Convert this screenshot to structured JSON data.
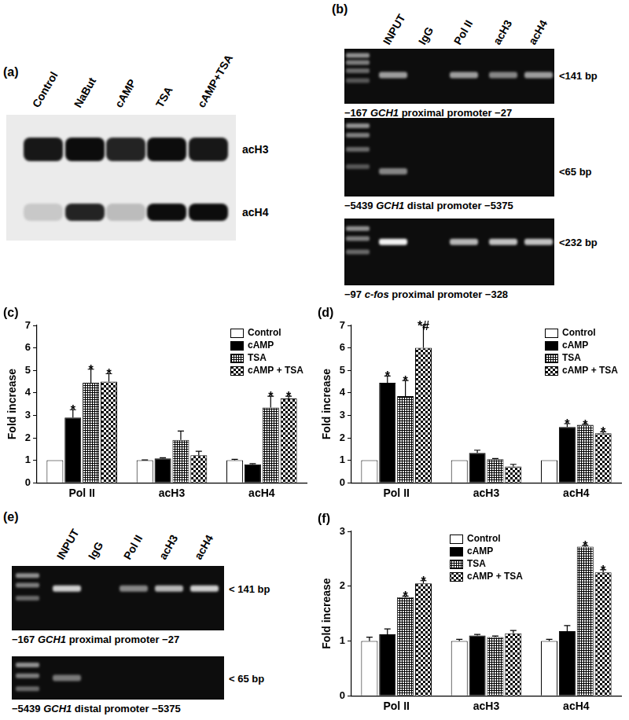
{
  "panels": [
    {
      "label": "(a)",
      "type": "western_blot",
      "lanes": [
        "Control",
        "NaBut",
        "cAMP",
        "TSA",
        "cAMP+TSA"
      ],
      "rows": [
        {
          "name": "acH3",
          "bands": [
            0.9,
            0.95,
            0.85,
            0.95,
            0.9
          ]
        },
        {
          "name": "acH4",
          "bands": [
            0.15,
            0.85,
            0.2,
            0.95,
            0.95
          ]
        }
      ]
    },
    {
      "label": "(b)",
      "type": "gel",
      "lanes": [
        "INPUT",
        "IgG",
        "Pol II",
        "acH3",
        "acH4"
      ],
      "rows": [
        {
          "size_label": "<141 bp",
          "caption": {
            "start": "−167",
            "gene": "GCH1",
            "end": "proximal promoter −27"
          },
          "bands": [
            0.6,
            0,
            0.6,
            0.5,
            0.6
          ]
        },
        {
          "size_label": "<65 bp",
          "caption": {
            "start": "−5439",
            "gene": "GCH1",
            "end": "distal promoter −5375"
          },
          "bands": [
            0.5,
            0,
            0,
            0,
            0
          ]
        },
        {
          "size_label": "<232 bp",
          "caption": {
            "start": "−97",
            "gene": "c-fos",
            "end": "proximal promoter −328"
          },
          "bands": [
            0.95,
            0,
            0.7,
            0.75,
            0.75
          ]
        }
      ]
    },
    {
      "label": "(e)",
      "type": "gel",
      "lanes": [
        "INPUT",
        "IgG",
        "Pol II",
        "acH3",
        "acH4"
      ],
      "rows": [
        {
          "size_label": "< 141 bp",
          "caption": {
            "start": "−167",
            "gene": "GCH1",
            "end": "proximal promoter −27"
          },
          "bands": [
            0.8,
            0,
            0.5,
            0.7,
            0.8
          ]
        },
        {
          "size_label": "< 65 bp",
          "caption": {
            "start": "−5439",
            "gene": "GCH1",
            "end": "distal promoter −5375"
          },
          "bands": [
            0.45,
            0,
            0,
            0,
            0
          ]
        }
      ]
    }
  ],
  "chart_data": [
    {
      "type": "bar",
      "title": "(c)",
      "y_label": "Fold increase",
      "categories": [
        "Pol II",
        "acH3",
        "acH4"
      ],
      "ylim": [
        0,
        7
      ],
      "yticks": [
        0,
        1,
        2,
        3,
        4,
        5,
        6,
        7
      ],
      "grid": false,
      "legend": "top-right",
      "series": [
        {
          "name": "Control",
          "color": "#ffffff",
          "values": [
            1,
            1,
            1
          ],
          "errors": [
            null,
            0.02,
            0.04
          ]
        },
        {
          "name": "cAMP",
          "color": "#000000",
          "values": [
            2.9,
            1.08,
            0.82
          ],
          "errors": [
            0.35,
            0.03,
            0.03
          ],
          "annotations": [
            "*",
            null,
            null
          ]
        },
        {
          "name": "TSA",
          "color": "#000000",
          "marker": "grid",
          "values": [
            4.45,
            1.9,
            3.35
          ],
          "errors": [
            0.6,
            0.4,
            0.5
          ],
          "annotations": [
            "*",
            null,
            "*"
          ]
        },
        {
          "name": "cAMP + TSA",
          "color": "#000000",
          "marker": "checker",
          "values": [
            4.5,
            1.22,
            3.75
          ],
          "errors": [
            0.35,
            0.18,
            0.1
          ],
          "annotations": [
            "*",
            null,
            "*"
          ]
        }
      ]
    },
    {
      "type": "bar",
      "title": "(d)",
      "y_label": "Fold increase",
      "categories": [
        "Pol II",
        "acH3",
        "acH4"
      ],
      "ylim": [
        0,
        7
      ],
      "yticks": [
        0,
        1,
        2,
        3,
        4,
        5,
        6,
        7
      ],
      "grid": false,
      "legend": "top-right",
      "series": [
        {
          "name": "Control",
          "color": "#ffffff",
          "values": [
            1,
            1,
            1
          ]
        },
        {
          "name": "cAMP",
          "color": "#000000",
          "values": [
            4.45,
            1.33,
            2.48
          ],
          "errors": [
            0.3,
            0.12,
            0.15
          ],
          "annotations": [
            "*",
            null,
            "*"
          ]
        },
        {
          "name": "TSA",
          "color": "#000000",
          "marker": "grid",
          "values": [
            3.85,
            1.05,
            2.58
          ],
          "errors": [
            0.7,
            0.03,
            0.03
          ],
          "annotations": [
            "*",
            null,
            "*"
          ]
        },
        {
          "name": "cAMP + TSA",
          "color": "#000000",
          "marker": "checker",
          "values": [
            6.0,
            0.72,
            2.2
          ],
          "errors": [
            1.0,
            0.1,
            0.07
          ],
          "annotations": [
            "*#",
            null,
            "*"
          ]
        }
      ]
    },
    {
      "type": "bar",
      "title": "(f)",
      "y_label": "Fold increase",
      "categories": [
        "Pol II",
        "acH3",
        "acH4"
      ],
      "ylim": [
        0,
        3
      ],
      "yticks": [
        0,
        1,
        2,
        3
      ],
      "grid": false,
      "legend": "top",
      "series": [
        {
          "name": "Control",
          "color": "#ffffff",
          "values": [
            1,
            1,
            1
          ],
          "errors": [
            0.07,
            0.03,
            0.03
          ]
        },
        {
          "name": "cAMP",
          "color": "#000000",
          "values": [
            1.12,
            1.1,
            1.18
          ],
          "errors": [
            0.1,
            0.02,
            0.1
          ]
        },
        {
          "name": "TSA",
          "color": "#000000",
          "marker": "grid",
          "values": [
            1.8,
            1.07,
            2.72
          ],
          "errors": [
            0.02,
            0.02,
            0.02
          ],
          "annotations": [
            "*",
            null,
            "*"
          ]
        },
        {
          "name": "cAMP + TSA",
          "color": "#000000",
          "marker": "checker",
          "values": [
            2.05,
            1.14,
            2.25
          ],
          "errors": [
            0.05,
            0.05,
            0.05
          ],
          "annotations": [
            "*",
            null,
            "*"
          ]
        }
      ]
    }
  ]
}
